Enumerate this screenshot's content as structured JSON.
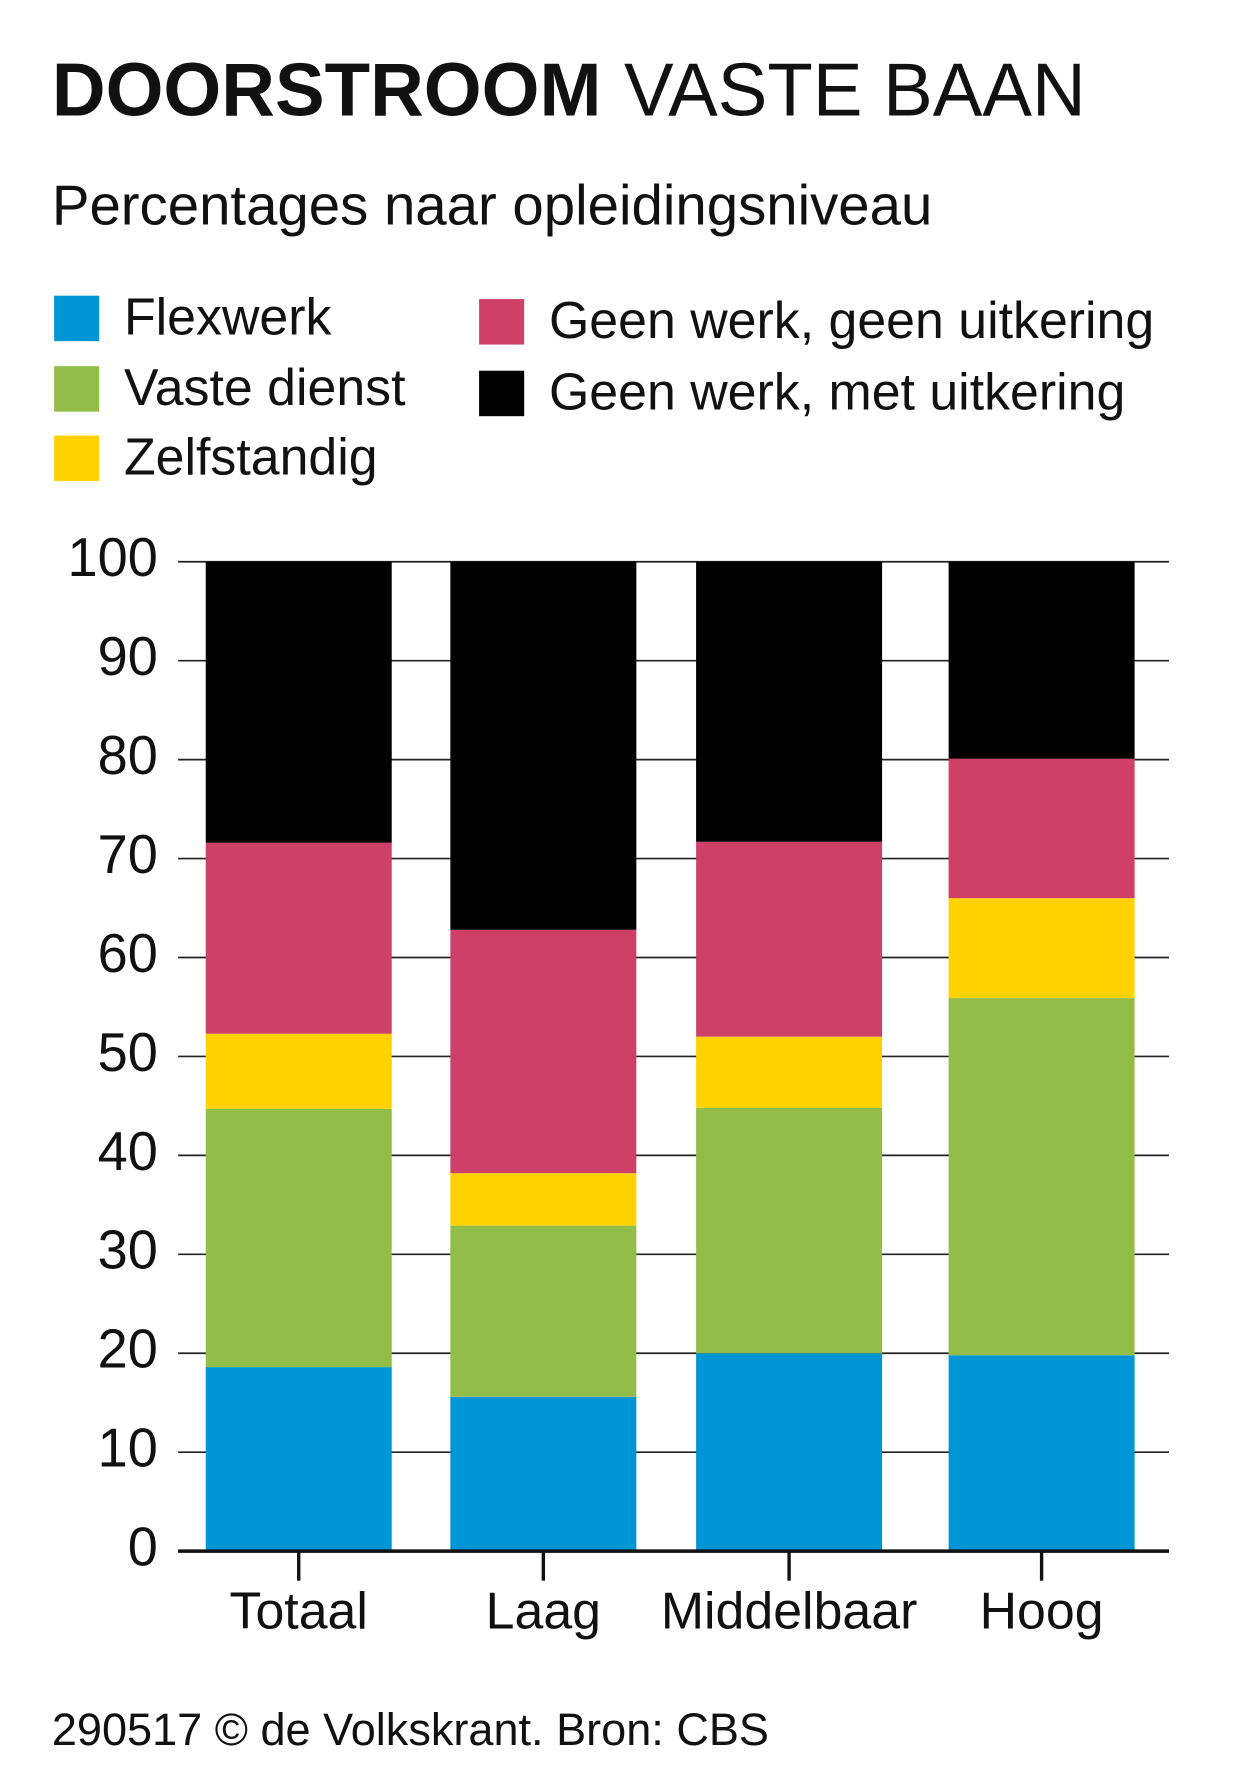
{
  "chart_data": {
    "type": "stacked-bar",
    "title": {
      "bold": "DOORSTROOM",
      "regular": "VASTE BAAN"
    },
    "subtitle": "Percentages naar opleidingsniveau",
    "categories": [
      "Totaal",
      "Laag",
      "Middelbaar",
      "Hoog"
    ],
    "series": [
      {
        "name": "Flexwerk",
        "color": "#0096d6",
        "values": [
          18.6,
          15.6,
          20,
          19.8
        ]
      },
      {
        "name": "Vaste dienst",
        "color": "#93bd49",
        "values": [
          26.1,
          17.3,
          24.8,
          36.1
        ]
      },
      {
        "name": "Zelfstandig",
        "color": "#ffd200",
        "values": [
          7.6,
          5.3,
          7.2,
          10.1
        ]
      },
      {
        "name": "Geen werk, geen uitkering",
        "color": "#cf4068",
        "values": [
          19.3,
          24.6,
          19.7,
          14.1
        ]
      },
      {
        "name": "Geen werk, met uitkering",
        "color": "#000000",
        "values": [
          28.4,
          37.2,
          28.3,
          19.9
        ]
      }
    ],
    "ylim": [
      0,
      100
    ],
    "yticks": [
      0,
      10,
      20,
      30,
      40,
      50,
      60,
      70,
      80,
      90,
      100
    ],
    "grid": true,
    "source": "290517 © de Volkskrant. Bron: CBS"
  }
}
